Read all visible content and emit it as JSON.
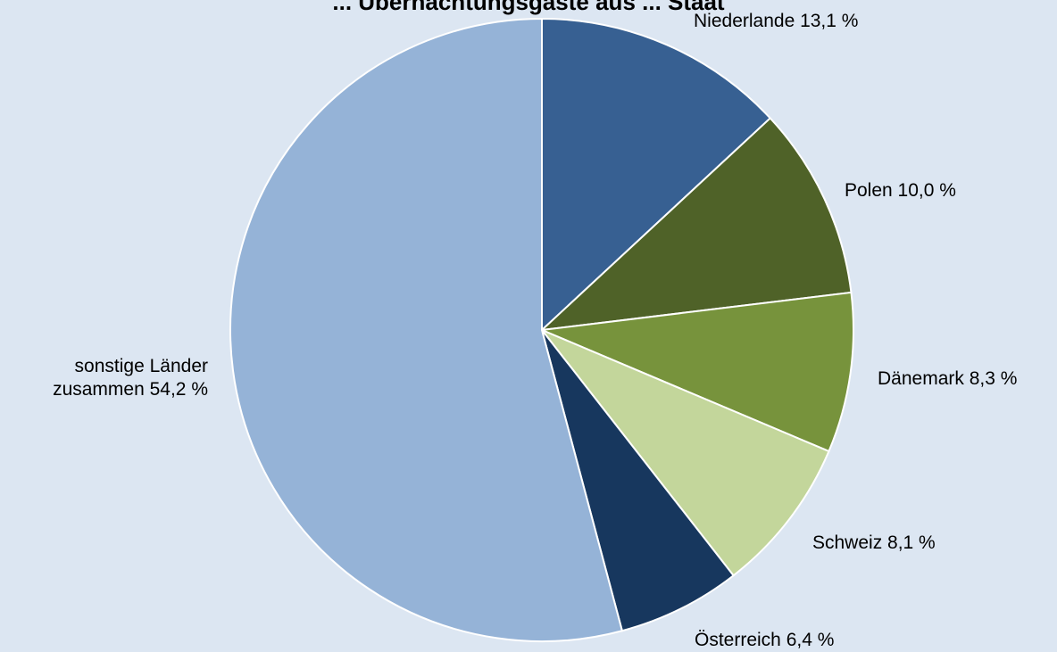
{
  "chart_data": {
    "type": "pie",
    "title": "... Übernachtungsgäste aus ... Staat",
    "slices": [
      {
        "label": "Niederlande 13,1 %",
        "value": 13.1,
        "color": "#376092"
      },
      {
        "label": "Polen 10,0 %",
        "value": 10.0,
        "color": "#4f6228"
      },
      {
        "label": "Dänemark 8,3 %",
        "value": 8.3,
        "color": "#77933c"
      },
      {
        "label": "Schweiz 8,1 %",
        "value": 8.1,
        "color": "#c3d69b"
      },
      {
        "label": "Österreich 6,4 %",
        "value": 6.4,
        "color": "#17375e"
      },
      {
        "label": "sonstige Länder\nzusammen 54,2 %",
        "value": 54.2,
        "color": "#95b3d7"
      }
    ]
  }
}
